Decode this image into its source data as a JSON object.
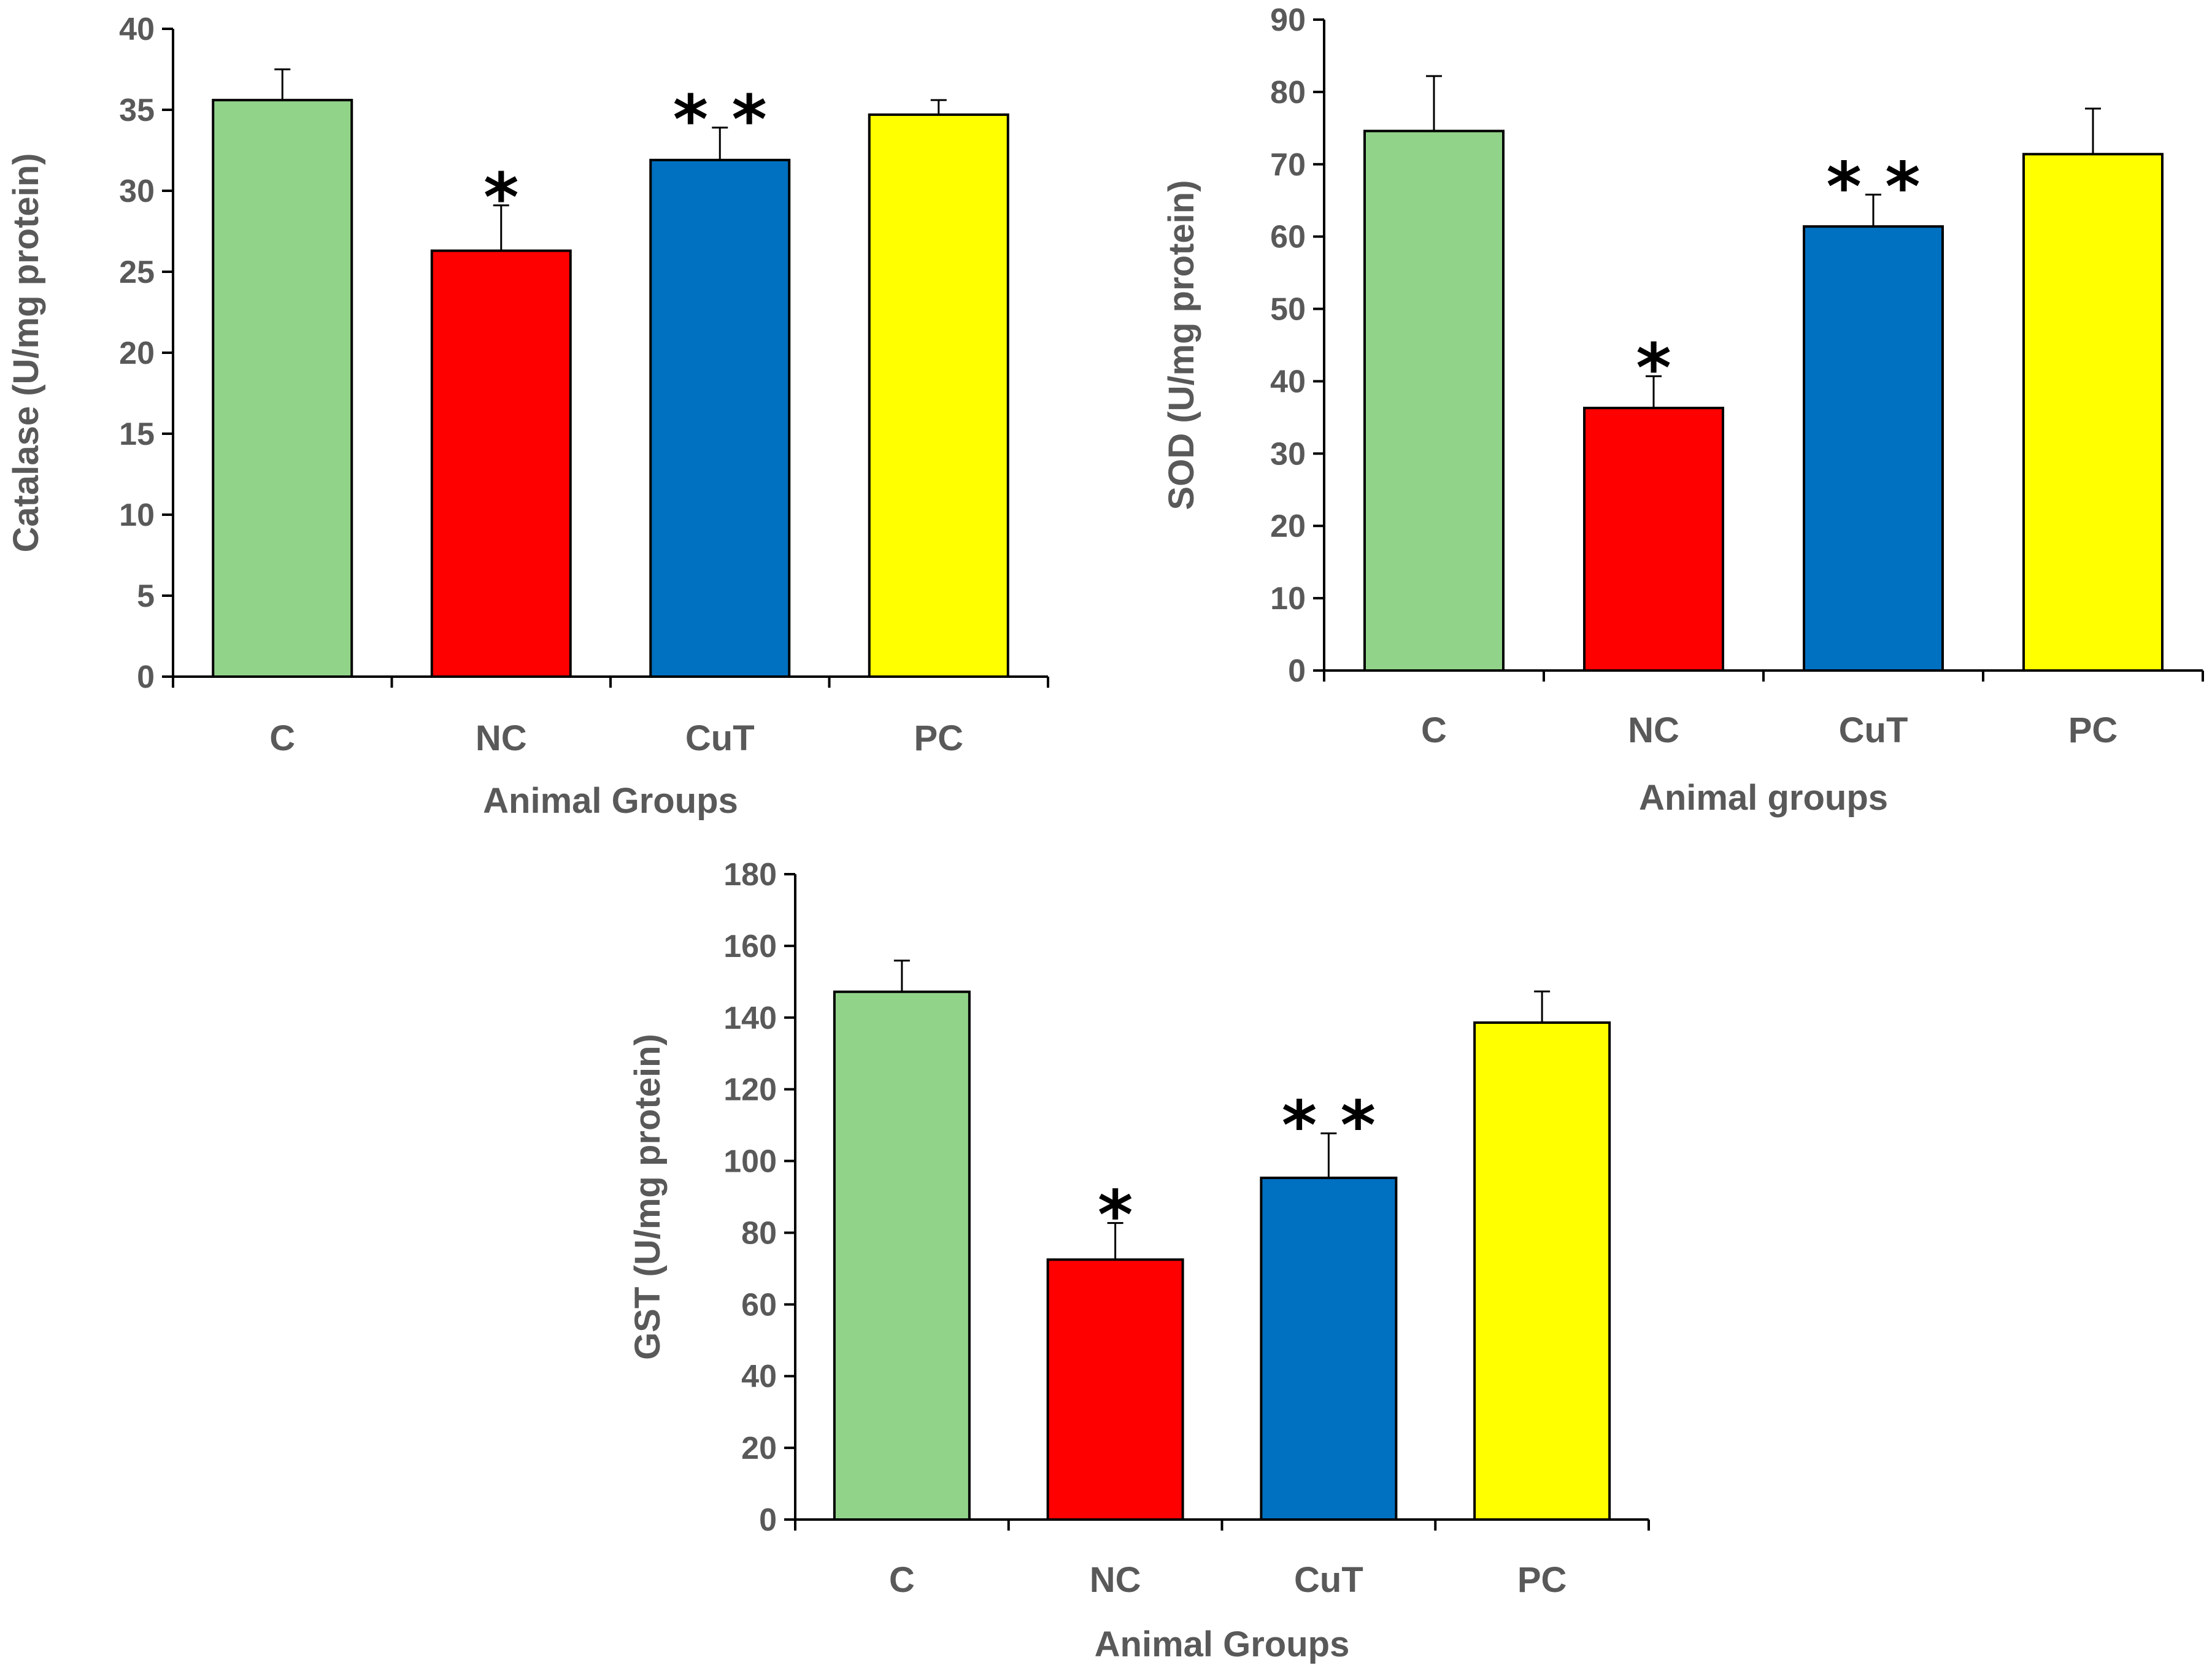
{
  "chart_data": [
    {
      "type": "bar",
      "id": "catalase",
      "categories": [
        "C",
        "NC",
        "CuT",
        "PC"
      ],
      "values": [
        35.6,
        26.3,
        31.9,
        34.7
      ],
      "errors": [
        1.9,
        2.8,
        2.0,
        0.9
      ],
      "significance": [
        "",
        "*",
        "**",
        ""
      ],
      "colors": [
        "#92D38A",
        "#FF0000",
        "#0070C0",
        "#FFFF00"
      ],
      "ylabel": "Catalase (U/mg protein)",
      "xlabel": "Animal Groups",
      "ylim": [
        0,
        40
      ],
      "yticks": [
        0,
        5,
        10,
        15,
        20,
        25,
        30,
        35,
        40
      ]
    },
    {
      "type": "bar",
      "id": "sod",
      "categories": [
        "C",
        "NC",
        "CuT",
        "PC"
      ],
      "values": [
        74.6,
        36.3,
        61.4,
        71.4
      ],
      "errors": [
        7.6,
        4.4,
        4.4,
        6.3
      ],
      "significance": [
        "",
        "*",
        "**",
        ""
      ],
      "colors": [
        "#92D38A",
        "#FF0000",
        "#0070C0",
        "#FFFF00"
      ],
      "ylabel": "SOD (U/mg protein)",
      "xlabel": "Animal groups",
      "ylim": [
        0,
        90
      ],
      "yticks": [
        0,
        10,
        20,
        30,
        40,
        50,
        60,
        70,
        80,
        90
      ]
    },
    {
      "type": "bar",
      "id": "gst",
      "categories": [
        "C",
        "NC",
        "CuT",
        "PC"
      ],
      "values": [
        147.2,
        72.5,
        95.3,
        138.6
      ],
      "errors": [
        8.7,
        10.2,
        12.4,
        8.7
      ],
      "significance": [
        "",
        "*",
        "**",
        ""
      ],
      "colors": [
        "#92D38A",
        "#FF0000",
        "#0070C0",
        "#FFFF00"
      ],
      "ylabel": "GST (U/mg protein)",
      "xlabel": "Animal Groups",
      "ylim": [
        0,
        180
      ],
      "yticks": [
        0,
        20,
        40,
        60,
        80,
        100,
        120,
        140,
        160,
        180
      ]
    }
  ]
}
